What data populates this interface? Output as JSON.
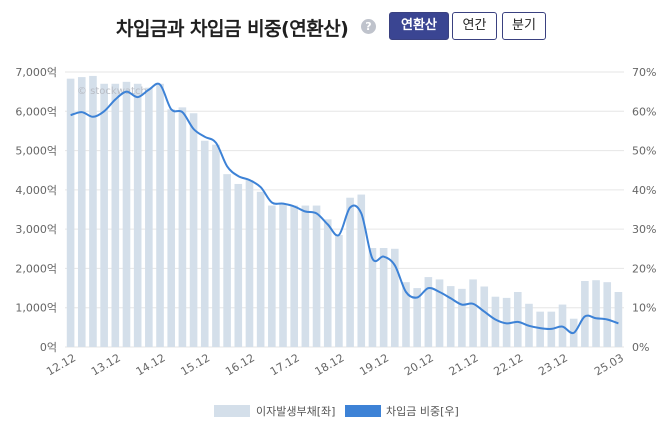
{
  "header": {
    "title": "차입금과 차입금 비중(연환산)",
    "help_icon": "question-icon",
    "buttons": [
      {
        "label": "연환산",
        "active": true
      },
      {
        "label": "연간",
        "active": false
      },
      {
        "label": "분기",
        "active": false
      }
    ]
  },
  "colors": {
    "bar": "#d4dfea",
    "line": "#3d82d6",
    "grid": "#e6e6e6",
    "accent": "#3a4592"
  },
  "chart_data": {
    "type": "bar+line",
    "title": "차입금과 차입금 비중(연환산)",
    "watermark": "© stockwatch",
    "left_axis": {
      "range": [
        0,
        7000
      ],
      "ticks": [
        "0억",
        "1,000억",
        "2,000억",
        "3,000억",
        "4,000억",
        "5,000억",
        "6,000억",
        "7,000억"
      ]
    },
    "right_axis": {
      "range": [
        0,
        70
      ],
      "ticks": [
        "0%",
        "10%",
        "20%",
        "30%",
        "40%",
        "50%",
        "60%",
        "70%"
      ]
    },
    "x_tick_labels": [
      {
        "label": "12.12",
        "index": 0
      },
      {
        "label": "13.12",
        "index": 4
      },
      {
        "label": "14.12",
        "index": 8
      },
      {
        "label": "15.12",
        "index": 12
      },
      {
        "label": "16.12",
        "index": 16
      },
      {
        "label": "17.12",
        "index": 20
      },
      {
        "label": "18.12",
        "index": 24
      },
      {
        "label": "19.12",
        "index": 28
      },
      {
        "label": "20.12",
        "index": 32
      },
      {
        "label": "21.12",
        "index": 36
      },
      {
        "label": "22.12",
        "index": 40
      },
      {
        "label": "23.12",
        "index": 44
      },
      {
        "label": "25.03",
        "index": 49
      }
    ],
    "series": [
      {
        "name": "이자발생부채[좌]",
        "type": "bar",
        "axis": "left",
        "values": [
          6830,
          6870,
          6900,
          6700,
          6700,
          6750,
          6700,
          6600,
          6700,
          6050,
          6100,
          5950,
          5250,
          5150,
          4400,
          4150,
          4250,
          3950,
          3600,
          3650,
          3600,
          3600,
          3600,
          3250,
          2850,
          3800,
          3880,
          2520,
          2520,
          2500,
          1650,
          1500,
          1780,
          1720,
          1550,
          1480,
          1720,
          1540,
          1280,
          1250,
          1400,
          1100,
          900,
          900,
          1080,
          720,
          1680,
          1700,
          1650,
          1400
        ]
      },
      {
        "name": "차입금 비중[우]",
        "type": "line",
        "axis": "right",
        "values": [
          59,
          59.8,
          58.6,
          60,
          63,
          65,
          63.6,
          65.5,
          66.8,
          60.5,
          59.8,
          55.5,
          53.5,
          52,
          46,
          43.5,
          42.5,
          40.7,
          36.8,
          36.5,
          35.8,
          34.5,
          34,
          31.2,
          28.5,
          35.5,
          34,
          22.5,
          23,
          20.8,
          14,
          12.6,
          15,
          14,
          12.4,
          10.8,
          11,
          9,
          7,
          6,
          6.4,
          5.4,
          4.8,
          4.6,
          5.2,
          3.6,
          7.8,
          7.3,
          7,
          6
        ]
      }
    ],
    "legend": [
      "이자발생부채[좌]",
      "차입금 비중[우]"
    ]
  }
}
